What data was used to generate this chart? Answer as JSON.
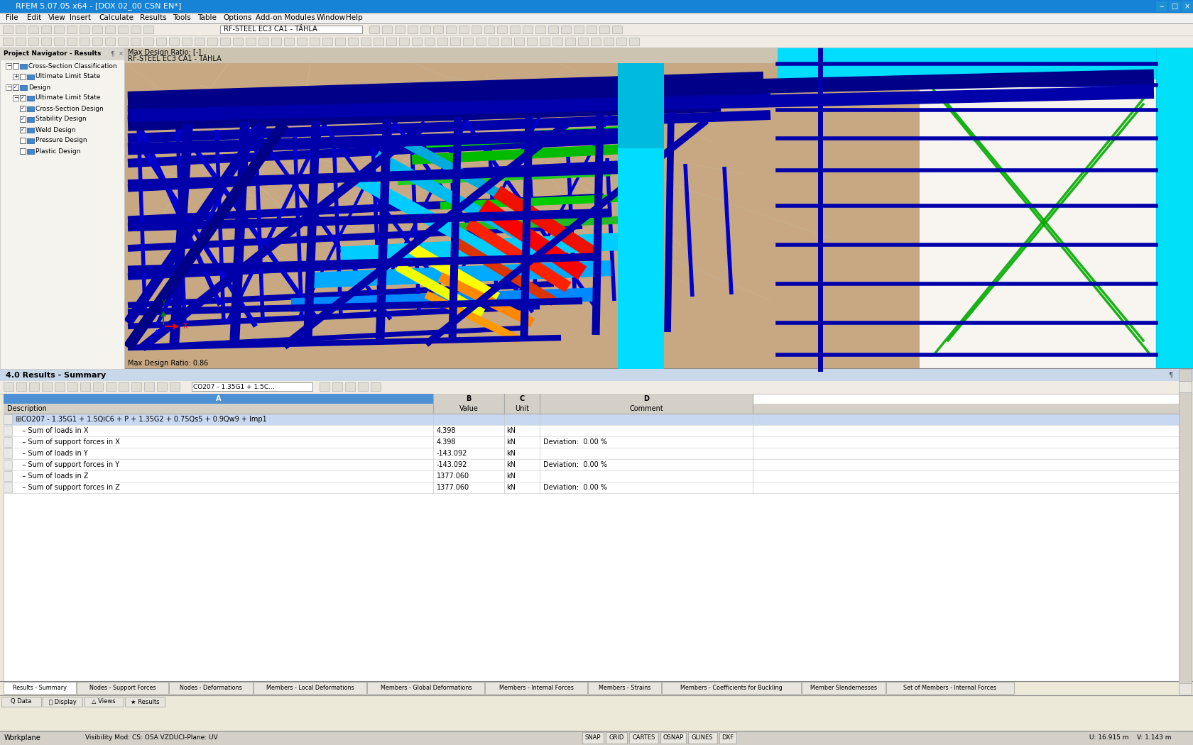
{
  "title_bar": "RFEM 5.07.05 x64 - [DOX 02_00 CSN EN*]",
  "title_bar_color": "#1683d7",
  "title_bar_text_color": "#ffffff",
  "menu_items": [
    "File",
    "Edit",
    "View",
    "Insert",
    "Calculate",
    "Results",
    "Tools",
    "Table",
    "Options",
    "Add-on Modules",
    "Window",
    "Help"
  ],
  "left_panel_title": "Project Navigator - Results",
  "left_panel_items": [
    {
      "label": "Cross-Section Classification",
      "checked": false,
      "level": 1,
      "expand": true
    },
    {
      "label": "Ultimate Limit State",
      "checked": false,
      "level": 2,
      "expand": false
    },
    {
      "label": "Design",
      "checked": true,
      "level": 1,
      "expand": true
    },
    {
      "label": "Ultimate Limit State",
      "checked": true,
      "level": 2,
      "expand": true
    },
    {
      "label": "Cross-Section Design",
      "checked": true,
      "level": 3,
      "expand": false
    },
    {
      "label": "Stability Design",
      "checked": true,
      "level": 3,
      "expand": false
    },
    {
      "label": "Weld Design",
      "checked": true,
      "level": 3,
      "expand": false
    },
    {
      "label": "Pressure Design",
      "checked": false,
      "level": 3,
      "expand": false
    },
    {
      "label": "Plastic Design",
      "checked": false,
      "level": 3,
      "expand": false
    }
  ],
  "combo_bar_text": "RF-STEEL EC3 CA1 - TÄHLA",
  "viewport_label_top": "Max Design Ratio: [-]",
  "viewport_label_sub": "RF-STEEL EC3 CA1 - TÄHLA",
  "viewport_bottom_label": "Max Design Ratio: 0.86",
  "viewport_bg": "#c8a882",
  "viewport_bg2": "#d8c4a8",
  "right_panel_bg": "#f0ede8",
  "right_panel_bg2": "#e8e4dc",
  "bottom_panel_title": "4.0 Results - Summary",
  "bottom_combo": "CO207 - 1.35G1 + 1.5C…",
  "table_rows": [
    {
      "col_a": "⊞CO207 - 1.35G1 + 1.5QiC6 + P + 1.35G2 + 0.75Qs5 + 0.9Qw9 + Imp1",
      "col_b": "",
      "col_c": "",
      "col_d": ""
    },
    {
      "col_a": "   – Sum of loads in X",
      "col_b": "4.398",
      "col_c": "kN",
      "col_d": ""
    },
    {
      "col_a": "   – Sum of support forces in X",
      "col_b": "4.398",
      "col_c": "kN",
      "col_d": "Deviation:  0.00 %"
    },
    {
      "col_a": "   – Sum of loads in Y",
      "col_b": "-143.092",
      "col_c": "kN",
      "col_d": ""
    },
    {
      "col_a": "   – Sum of support forces in Y",
      "col_b": "-143.092",
      "col_c": "kN",
      "col_d": "Deviation:  0.00 %"
    },
    {
      "col_a": "   – Sum of loads in Z",
      "col_b": "1377.060",
      "col_c": "kN",
      "col_d": ""
    },
    {
      "col_a": "   – Sum of support forces in Z",
      "col_b": "1377.060",
      "col_c": "kN",
      "col_d": "Deviation:  0.00 %"
    }
  ],
  "tab_labels": [
    "Results - Summary",
    "Nodes - Support Forces",
    "Nodes - Deformations",
    "Members - Local Deformations",
    "Members - Global Deformations",
    "Members - Internal Forces",
    "Members - Strains",
    "Members - Coefficients for Buckling",
    "Member Slendernesses",
    "Set of Members - Internal Forces"
  ],
  "status_bar_items": [
    "SNAP",
    "GRID",
    "CARTES",
    "OSNAP",
    "GLINES",
    "DXF"
  ],
  "status_bar_right": "U: 16.915 m    V: 1.143 m",
  "status_bar_left": "Workplane",
  "status_bar_mode": "Visibility Mod: CS: OSA VZDUCI-Plane: UV",
  "window_bg": "#ece9d8",
  "table_header_bg": "#d4d0c8",
  "table_header_sel": "#4d90d4",
  "table_row_bg1": "#ffffff",
  "table_row_sel": "#c8d8f0",
  "table_border_color": "#a0a0a0"
}
